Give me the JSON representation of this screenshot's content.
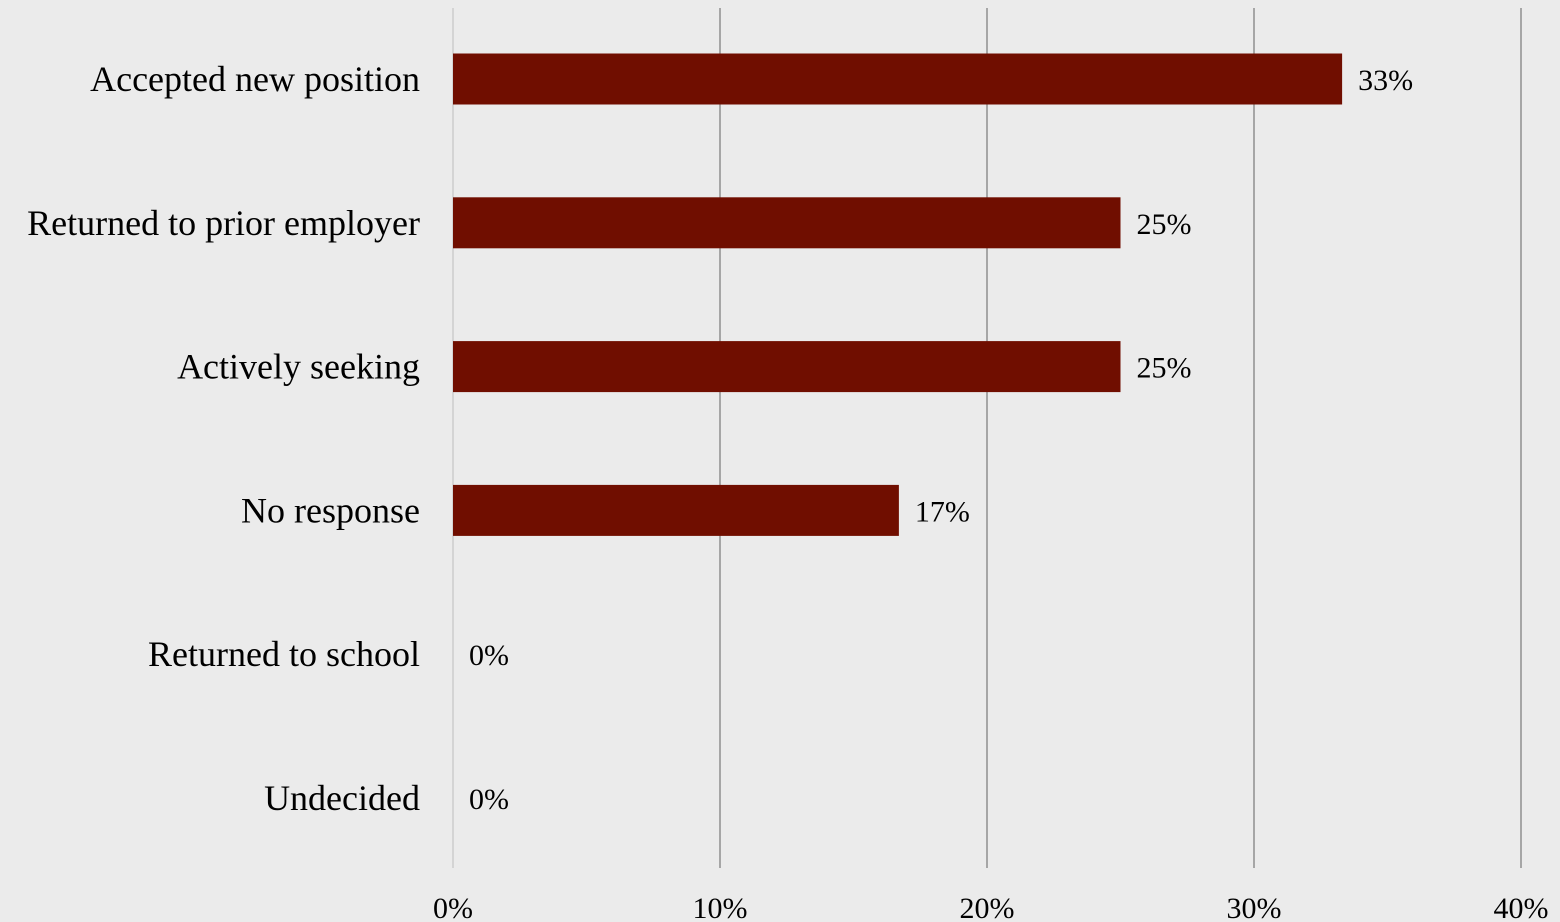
{
  "chart_data": {
    "type": "bar",
    "orientation": "horizontal",
    "categories": [
      "Accepted new position",
      "Returned to prior employer",
      "Actively seeking",
      "No response",
      "Returned to school",
      "Undecided"
    ],
    "values": [
      33.3,
      25,
      25,
      16.7,
      0,
      0
    ],
    "data_labels": [
      "33%",
      "25%",
      "25%",
      "17%",
      "0%",
      "0%"
    ],
    "xlim": [
      0,
      40
    ],
    "x_ticks": [
      0,
      10,
      20,
      30,
      40
    ],
    "x_tick_labels": [
      "0%",
      "10%",
      "20%",
      "30%",
      "40%"
    ],
    "grid": "vertical",
    "legend": "none",
    "colors": {
      "bar": "#700e00",
      "background": "#ebebeb",
      "grid": "#a6a6a6",
      "zero_line": "#d4d4d4"
    }
  }
}
